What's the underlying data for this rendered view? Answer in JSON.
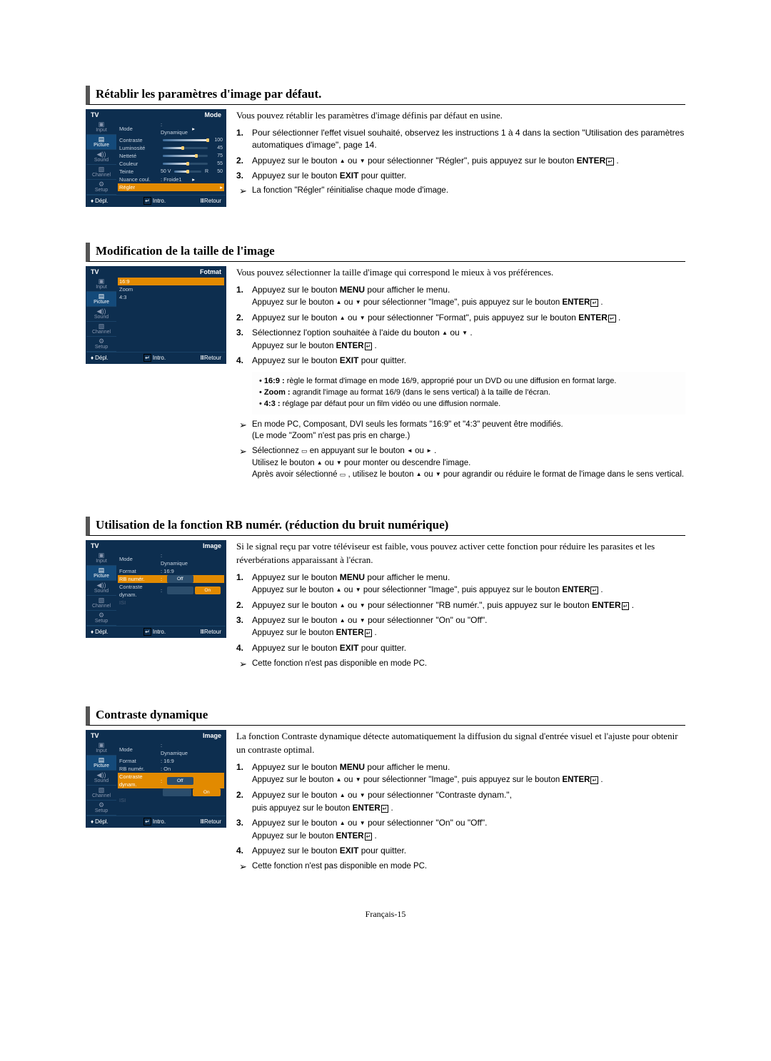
{
  "pageNum": "Français-15",
  "sidebar": {
    "items": [
      {
        "label": "Input",
        "icon": "▣"
      },
      {
        "label": "Picture",
        "icon": "▤",
        "active": true
      },
      {
        "label": "Sound",
        "icon": "◀))"
      },
      {
        "label": "Channel",
        "icon": "▧"
      },
      {
        "label": "Setup",
        "icon": "⚙"
      }
    ]
  },
  "tvFooter": {
    "move": "Dépl.",
    "enter": "Intro.",
    "return": "Retour"
  },
  "sections": [
    {
      "id": "reset",
      "title": "Rétablir les paramètres d'image par défaut.",
      "panel": {
        "title": "TV",
        "sub": "Mode",
        "rows": [
          {
            "type": "sel",
            "lbl": "Mode",
            "val": ": Dynamique",
            "arrow": true
          },
          {
            "type": "slider",
            "lbl": "Contraste",
            "num": "100",
            "pct": 100
          },
          {
            "type": "slider",
            "lbl": "Luminosité",
            "num": "45",
            "pct": 45
          },
          {
            "type": "slider",
            "lbl": "Netteté",
            "num": "75",
            "pct": 75
          },
          {
            "type": "slider",
            "lbl": "Couleur",
            "num": "55",
            "pct": 55
          },
          {
            "type": "teinte",
            "lbl": "Teinte",
            "left": "V",
            "right": "R",
            "leftNum": "50",
            "rightNum": "50",
            "pct": 50
          },
          {
            "type": "sel",
            "lbl": "Nuance coul.",
            "val": ": Froide1",
            "arrow": true
          },
          {
            "type": "hl",
            "lbl": "Régler",
            "arrow": true
          }
        ]
      },
      "intro": "Vous pouvez rétablir les paramètres d'image définis par défaut en usine.",
      "steps": [
        {
          "n": "1.",
          "html": "Pour sélectionner l'effet visuel souhaité, observez les instructions 1 à 4 dans la section \"Utilisation des paramètres automatiques d'image\", page 14."
        },
        {
          "n": "2.",
          "html": "Appuyez sur le bouton <span class='glyph-up'></span> ou <span class='glyph-down'></span> pour sélectionner \"Régler\", puis appuyez sur le bouton <b>ENTER</b><span class='glyph-enter'></span> ."
        },
        {
          "n": "3.",
          "html": "Appuyez sur le bouton <b>EXIT</b> pour quitter."
        }
      ],
      "notes": [
        {
          "text": "La fonction \"Régler\" réinitialise chaque mode d'image."
        }
      ]
    },
    {
      "id": "format",
      "title": "Modification de la taille de l'image",
      "panel": {
        "title": "TV",
        "sub": "Fotmat",
        "rows": [
          {
            "type": "hl",
            "lbl": "16:9"
          },
          {
            "type": "plain",
            "lbl": "Zoom"
          },
          {
            "type": "plain",
            "lbl": "4:3"
          }
        ]
      },
      "intro": "Vous pouvez sélectionner la taille d'image qui correspond le mieux à vos préférences.",
      "steps": [
        {
          "n": "1.",
          "html": "Appuyez sur le bouton <b>MENU</b> pour afficher le menu.<div class='sublines'>Appuyez sur le bouton <span class='glyph-up'></span> ou <span class='glyph-down'></span> pour sélectionner \"Image\", puis appuyez sur le bouton <b>ENTER</b><span class='glyph-enter'></span> .</div>"
        },
        {
          "n": "2.",
          "html": "Appuyez sur le bouton <span class='glyph-up'></span> ou <span class='glyph-down'></span> pour sélectionner \"Format\", puis appuyez sur le bouton <b>ENTER</b><span class='glyph-enter'></span> ."
        },
        {
          "n": "3.",
          "html": "Sélectionnez l'option souhaitée à l'aide du bouton <span class='glyph-up'></span> ou <span class='glyph-down'></span> .<div class='sublines'>Appuyez sur le bouton <b>ENTER</b><span class='glyph-enter'></span> .</div>"
        },
        {
          "n": "4.",
          "html": "Appuyez sur le bouton <b>EXIT</b> pour quitter."
        }
      ],
      "box": [
        "• <b>16:9 :</b> règle le format d'image en mode 16/9, approprié pour un DVD ou une diffusion en format large.",
        "• <b>Zoom :</b> agrandit l'image au format 16/9 (dans le sens vertical) à la taille de l'écran.",
        "• <b>4:3 :</b> réglage par défaut pour un film vidéo ou une diffusion normale."
      ],
      "notes": [
        {
          "text": "En mode PC, Composant, DVI seuls les formats \"16:9\" et \"4:3\" peuvent être modifiés.<br>(Le mode \"Zoom\" n'est pas pris en charge.)"
        },
        {
          "text": "Sélectionnez <span class='glyph-iconbox'></span> en appuyant sur le bouton <span class='glyph-left'></span> ou <span class='glyph-right'></span> .<br>Utilisez le bouton <span class='glyph-up'></span> ou <span class='glyph-down'></span> pour monter ou descendre l'image.<br>Après avoir sélectionné <span class='glyph-iconbox'></span> , utilisez le bouton <span class='glyph-up'></span> ou <span class='glyph-down'></span> pour agrandir ou réduire le format de l'image dans le sens vertical."
        }
      ]
    },
    {
      "id": "rb",
      "title": "Utilisation de la fonction RB numér. (réduction du bruit numérique)",
      "panel": {
        "title": "TV",
        "sub": "Image",
        "rows": [
          {
            "type": "val",
            "lbl": "Mode",
            "val": ": Dynamique"
          },
          {
            "type": "val",
            "lbl": "Format",
            "val": ": 16:9"
          },
          {
            "type": "toggle-hl",
            "lbl": "RB numér.",
            "colon": ":",
            "off": "Off",
            "on": ""
          },
          {
            "type": "toggle",
            "lbl": "Contraste dynam.",
            "colon": ":",
            "off": "",
            "on": "On"
          },
          {
            "type": "dim",
            "lbl": "ISI"
          }
        ]
      },
      "intro": "Si le signal reçu par votre téléviseur est faible, vous pouvez activer cette fonction pour réduire les parasites et les réverbérations apparaissant à l'écran.",
      "steps": [
        {
          "n": "1.",
          "html": "Appuyez sur le bouton <b>MENU</b> pour afficher le menu.<div class='sublines'>Appuyez sur le bouton <span class='glyph-up'></span> ou <span class='glyph-down'></span> pour sélectionner \"Image\", puis appuyez sur le bouton <b>ENTER</b><span class='glyph-enter'></span> .</div>"
        },
        {
          "n": "2.",
          "html": "Appuyez sur le bouton <span class='glyph-up'></span> ou <span class='glyph-down'></span> pour sélectionner \"RB numér.\", puis appuyez sur le bouton <b>ENTER</b><span class='glyph-enter'></span> ."
        },
        {
          "n": "3.",
          "html": "Appuyez sur le bouton <span class='glyph-up'></span> ou <span class='glyph-down'></span> pour sélectionner \"On\" ou \"Off\".<div class='sublines'>Appuyez sur le bouton <b>ENTER</b><span class='glyph-enter'></span> .</div>"
        },
        {
          "n": "4.",
          "html": "Appuyez sur le bouton <b>EXIT</b> pour quitter."
        }
      ],
      "notes": [
        {
          "text": "Cette fonction n'est pas disponible en mode PC."
        }
      ]
    },
    {
      "id": "contrast",
      "title": "Contraste dynamique",
      "panel": {
        "title": "TV",
        "sub": "Image",
        "rows": [
          {
            "type": "val",
            "lbl": "Mode",
            "val": ": Dynamique"
          },
          {
            "type": "val",
            "lbl": "Format",
            "val": ": 16:9"
          },
          {
            "type": "val",
            "lbl": "RB numér.",
            "val": ": On"
          },
          {
            "type": "toggle-hl",
            "lbl": "Contraste dynam.",
            "colon": ":",
            "off": "Off",
            "on": ""
          },
          {
            "type": "toggle",
            "lbl": "",
            "off": "",
            "on": "On"
          },
          {
            "type": "dim",
            "lbl": "ISI"
          }
        ]
      },
      "intro": "La fonction Contraste dynamique détecte automatiquement la diffusion du signal d'entrée visuel et l'ajuste pour obtenir un contraste optimal.",
      "steps": [
        {
          "n": "1.",
          "html": "Appuyez sur le bouton <b>MENU</b> pour afficher le menu.<div class='sublines'>Appuyez sur le bouton <span class='glyph-up'></span> ou <span class='glyph-down'></span> pour sélectionner \"Image\", puis appuyez sur le bouton <b>ENTER</b><span class='glyph-enter'></span> .</div>"
        },
        {
          "n": "2.",
          "html": "Appuyez sur le bouton <span class='glyph-up'></span> ou <span class='glyph-down'></span> pour sélectionner \"Contraste dynam.\",<div class='sublines'>puis appuyez sur le bouton <b>ENTER</b><span class='glyph-enter'></span> .</div>"
        },
        {
          "n": "3.",
          "html": "Appuyez sur le bouton <span class='glyph-up'></span> ou <span class='glyph-down'></span> pour sélectionner \"On\" ou \"Off\".<div class='sublines'>Appuyez sur le bouton <b>ENTER</b><span class='glyph-enter'></span> .</div>"
        },
        {
          "n": "4.",
          "html": "Appuyez sur le bouton <b>EXIT</b> pour quitter."
        }
      ],
      "notes": [
        {
          "text": "Cette fonction n'est pas disponible en mode PC."
        }
      ]
    }
  ]
}
